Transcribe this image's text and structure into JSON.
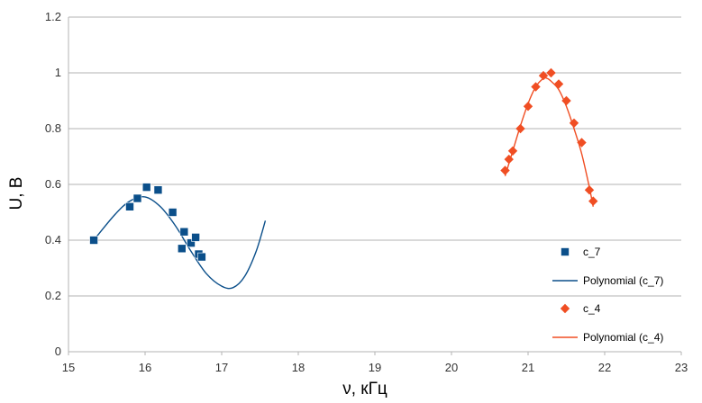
{
  "chart_data": {
    "type": "scatter",
    "xlabel": "ν, кГц",
    "ylabel": "U, В",
    "xlim": [
      15,
      23
    ],
    "ylim": [
      0,
      1.2
    ],
    "x_ticks": [
      "15",
      "16",
      "17",
      "18",
      "19",
      "20",
      "21",
      "22",
      "23"
    ],
    "y_ticks": [
      "0",
      "0.2",
      "0.4",
      "0.6",
      "0.8",
      "1",
      "1.2"
    ],
    "grid": "horizontal",
    "legend_position": "right",
    "series": [
      {
        "name": "c_7",
        "marker": "square",
        "color": "#0b4f8a",
        "x": [
          15.33,
          15.8,
          15.9,
          16.02,
          16.17,
          16.36,
          16.48,
          16.51,
          16.6,
          16.66,
          16.7,
          16.74
        ],
        "y": [
          0.4,
          0.52,
          0.55,
          0.59,
          0.58,
          0.5,
          0.37,
          0.43,
          0.39,
          0.41,
          0.35,
          0.34
        ]
      },
      {
        "name": "c_4",
        "marker": "diamond",
        "color": "#f04e23",
        "x": [
          20.7,
          20.75,
          20.8,
          20.9,
          21.0,
          21.1,
          21.2,
          21.3,
          21.4,
          21.5,
          21.6,
          21.7,
          21.8,
          21.85
        ],
        "y": [
          0.65,
          0.69,
          0.72,
          0.8,
          0.88,
          0.95,
          0.99,
          1.0,
          0.96,
          0.9,
          0.82,
          0.75,
          0.58,
          0.54
        ]
      }
    ],
    "trendlines": [
      {
        "name": "Polynomial (c_7)",
        "color": "#0b4f8a",
        "x": [
          15.33,
          15.6,
          15.8,
          16.0,
          16.2,
          16.4,
          16.6,
          16.8,
          17.0,
          17.15,
          17.3,
          17.45,
          17.57
        ],
        "y": [
          0.4,
          0.49,
          0.54,
          0.555,
          0.52,
          0.45,
          0.36,
          0.28,
          0.235,
          0.23,
          0.27,
          0.36,
          0.47
        ]
      },
      {
        "name": "Polynomial (c_4)",
        "color": "#f04e23",
        "x": [
          20.7,
          20.8,
          20.9,
          21.0,
          21.1,
          21.2,
          21.25,
          21.3,
          21.4,
          21.5,
          21.6,
          21.7,
          21.8,
          21.85
        ],
        "y": [
          0.63,
          0.72,
          0.81,
          0.89,
          0.95,
          0.98,
          0.98,
          0.97,
          0.94,
          0.88,
          0.8,
          0.71,
          0.59,
          0.52
        ]
      }
    ]
  },
  "legend": {
    "items": [
      {
        "label": "c_7",
        "kind": "marker"
      },
      {
        "label": "Polynomial (c_7)",
        "kind": "line"
      },
      {
        "label": "c_4",
        "kind": "marker"
      },
      {
        "label": "Polynomial (c_4)",
        "kind": "line"
      }
    ]
  }
}
